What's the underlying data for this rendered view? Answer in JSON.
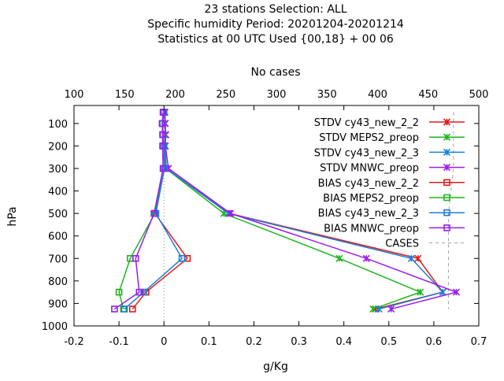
{
  "chart_data": {
    "type": "line",
    "title_lines": [
      "23 stations Selection: ALL",
      "Specific humidity  Period: 20201204-20201214",
      "Statistics at 00 UTC  Used {00,18} + 00 06"
    ],
    "xlabel": "g/Kg",
    "ylabel": "hPa",
    "x2label": "No cases",
    "xlim": [
      -0.2,
      0.7
    ],
    "ylim": [
      1000,
      20
    ],
    "x2lim": [
      100,
      500
    ],
    "xticks": [
      "-0.2",
      "-0.1",
      "0",
      "0.1",
      "0.2",
      "0.3",
      "0.4",
      "0.5",
      "0.6",
      "0.7"
    ],
    "yticks": [
      "100",
      "200",
      "300",
      "400",
      "500",
      "600",
      "700",
      "800",
      "900",
      "1000"
    ],
    "x2ticks": [
      "100",
      "150",
      "200",
      "250",
      "300",
      "350",
      "400",
      "450",
      "500"
    ],
    "legend_position": "top-right",
    "series": [
      {
        "name": "STDV cy43_new_2_2",
        "color": "#e41a1c",
        "marker": "x",
        "points": [
          [
            0.002,
            50
          ],
          [
            0.002,
            100
          ],
          [
            0.003,
            150
          ],
          [
            0.002,
            200
          ],
          [
            0.005,
            300
          ],
          [
            0.145,
            500
          ],
          [
            0.565,
            700
          ],
          [
            0.62,
            850
          ],
          [
            0.47,
            925
          ]
        ]
      },
      {
        "name": "STDV MEPS2_preop",
        "color": "#1eb51e",
        "marker": "x",
        "points": [
          [
            0.002,
            50
          ],
          [
            0.002,
            100
          ],
          [
            0.003,
            150
          ],
          [
            0.002,
            200
          ],
          [
            0.004,
            300
          ],
          [
            0.133,
            500
          ],
          [
            0.39,
            700
          ],
          [
            0.57,
            850
          ],
          [
            0.465,
            925
          ]
        ]
      },
      {
        "name": "STDV cy43_new_2_3",
        "color": "#1a7fd8",
        "marker": "x",
        "points": [
          [
            0.002,
            50
          ],
          [
            0.002,
            100
          ],
          [
            0.003,
            150
          ],
          [
            0.002,
            200
          ],
          [
            0.005,
            300
          ],
          [
            0.143,
            500
          ],
          [
            0.55,
            700
          ],
          [
            0.62,
            850
          ],
          [
            0.478,
            925
          ]
        ]
      },
      {
        "name": "STDV MNWC_preop",
        "color": "#9a1eec",
        "marker": "x",
        "points": [
          [
            0.002,
            50
          ],
          [
            0.003,
            100
          ],
          [
            0.004,
            150
          ],
          [
            0.003,
            200
          ],
          [
            0.01,
            300
          ],
          [
            0.148,
            500
          ],
          [
            0.45,
            700
          ],
          [
            0.65,
            850
          ],
          [
            0.505,
            925
          ]
        ]
      },
      {
        "name": "BIAS cy43_new_2_2",
        "color": "#e41a1c",
        "marker": "square",
        "points": [
          [
            0.0,
            50
          ],
          [
            -0.003,
            100
          ],
          [
            -0.002,
            150
          ],
          [
            0.0,
            200
          ],
          [
            0.001,
            300
          ],
          [
            -0.02,
            500
          ],
          [
            0.052,
            700
          ],
          [
            -0.04,
            850
          ],
          [
            -0.07,
            925
          ]
        ]
      },
      {
        "name": "BIAS MEPS2_preop",
        "color": "#1eb51e",
        "marker": "square",
        "points": [
          [
            0.0,
            50
          ],
          [
            -0.003,
            100
          ],
          [
            -0.002,
            150
          ],
          [
            0.0,
            200
          ],
          [
            0.001,
            300
          ],
          [
            -0.02,
            500
          ],
          [
            -0.075,
            700
          ],
          [
            -0.1,
            850
          ],
          [
            -0.09,
            925
          ]
        ]
      },
      {
        "name": "BIAS cy43_new_2_3",
        "color": "#1a7fd8",
        "marker": "square",
        "points": [
          [
            0.0,
            50
          ],
          [
            -0.003,
            100
          ],
          [
            -0.002,
            150
          ],
          [
            0.0,
            200
          ],
          [
            0.001,
            300
          ],
          [
            -0.018,
            500
          ],
          [
            0.04,
            700
          ],
          [
            -0.045,
            850
          ],
          [
            -0.088,
            925
          ]
        ]
      },
      {
        "name": "BIAS MNWC_preop",
        "color": "#9a1eec",
        "marker": "square",
        "points": [
          [
            -0.002,
            50
          ],
          [
            -0.004,
            100
          ],
          [
            -0.003,
            150
          ],
          [
            -0.003,
            200
          ],
          [
            -0.002,
            300
          ],
          [
            -0.022,
            500
          ],
          [
            -0.063,
            700
          ],
          [
            -0.055,
            850
          ],
          [
            -0.11,
            925
          ]
        ]
      }
    ],
    "cases": {
      "name": "CASES",
      "color": "#a0a0a0",
      "style": "dashed",
      "points": [
        [
          475,
          50
        ],
        [
          475,
          100
        ],
        [
          475,
          150
        ],
        [
          475,
          200
        ],
        [
          475,
          300
        ],
        [
          470,
          500
        ],
        [
          470,
          700
        ],
        [
          470,
          850
        ],
        [
          470,
          925
        ]
      ]
    }
  }
}
